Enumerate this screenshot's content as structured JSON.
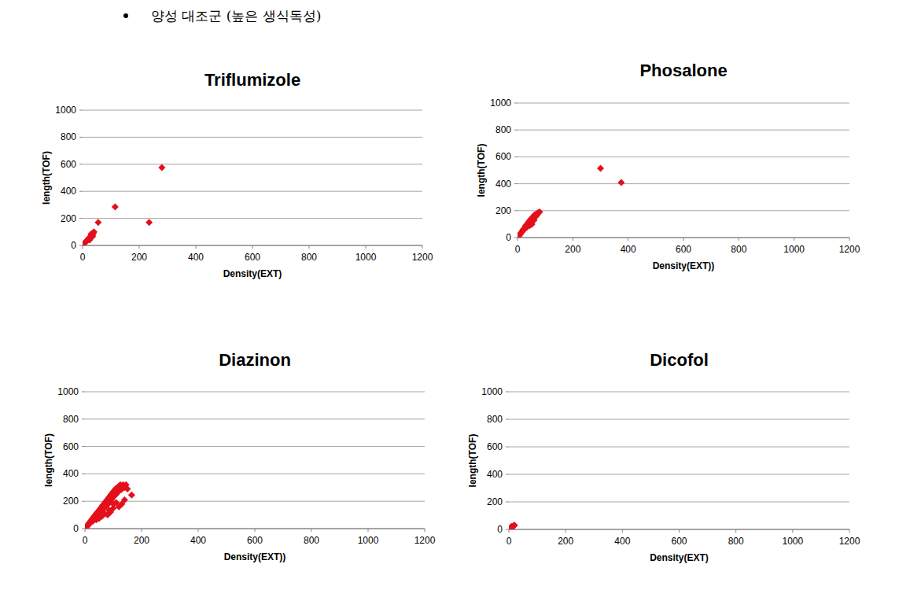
{
  "heading": "양성 대조군 (높은 생식독성)",
  "chart_data": [
    {
      "type": "scatter",
      "title": "Triflumizole",
      "x_label": "Density(EXT)",
      "y_label": "length(TOF)",
      "color": "#e3101c",
      "marker": "diamond",
      "grid": true,
      "xlim": [
        0,
        1200
      ],
      "ylim": [
        0,
        1000
      ],
      "xticks": [
        0,
        200,
        400,
        600,
        800,
        1000,
        1200
      ],
      "yticks": [
        0,
        200,
        400,
        600,
        800,
        1000
      ],
      "x": [
        2,
        5,
        8,
        10,
        12,
        15,
        18,
        20,
        22,
        25,
        28,
        30,
        32,
        35,
        38,
        40,
        30,
        25,
        35,
        55,
        115,
        235,
        280
      ],
      "values": [
        5,
        12,
        20,
        25,
        30,
        35,
        40,
        50,
        45,
        60,
        55,
        70,
        80,
        65,
        90,
        100,
        85,
        40,
        75,
        170,
        285,
        170,
        575
      ]
    },
    {
      "type": "scatter",
      "title": "Phosalone",
      "x_label": "Density(EXT))",
      "y_label": "length(TOF)",
      "color": "#e3101c",
      "marker": "diamond",
      "grid": true,
      "xlim": [
        0,
        1200
      ],
      "ylim": [
        0,
        1000
      ],
      "xticks": [
        0,
        200,
        400,
        600,
        800,
        1000,
        1200
      ],
      "yticks": [
        0,
        200,
        400,
        600,
        800,
        1000
      ],
      "x": [
        3,
        6,
        10,
        12,
        15,
        18,
        20,
        22,
        25,
        28,
        30,
        32,
        35,
        38,
        40,
        42,
        45,
        48,
        50,
        52,
        55,
        58,
        60,
        62,
        65,
        68,
        70,
        75,
        80,
        50,
        45,
        35,
        300,
        375
      ],
      "values": [
        8,
        15,
        25,
        35,
        40,
        50,
        60,
        55,
        70,
        80,
        90,
        75,
        100,
        110,
        95,
        120,
        130,
        115,
        140,
        100,
        150,
        160,
        130,
        170,
        155,
        175,
        165,
        185,
        190,
        110,
        90,
        80,
        515,
        410
      ]
    },
    {
      "type": "scatter",
      "title": "Diazinon",
      "x_label": "Density(EXT))",
      "y_label": "length(TOF)",
      "color": "#e3101c",
      "marker": "diamond",
      "grid": true,
      "xlim": [
        0,
        1200
      ],
      "ylim": [
        0,
        1000
      ],
      "xticks": [
        0,
        200,
        400,
        600,
        800,
        1000,
        1200
      ],
      "yticks": [
        0,
        200,
        400,
        600,
        800,
        1000
      ],
      "x": [
        2,
        5,
        8,
        10,
        12,
        15,
        18,
        20,
        22,
        25,
        28,
        30,
        32,
        35,
        38,
        40,
        42,
        45,
        48,
        50,
        52,
        55,
        58,
        60,
        62,
        65,
        68,
        70,
        72,
        75,
        78,
        80,
        82,
        85,
        88,
        90,
        92,
        95,
        98,
        100,
        102,
        105,
        108,
        110,
        115,
        118,
        120,
        125,
        128,
        135,
        140,
        145,
        150,
        165,
        140,
        130,
        110,
        100,
        90,
        80,
        70,
        60,
        50,
        40,
        120,
        100,
        85
      ],
      "values": [
        5,
        10,
        20,
        30,
        25,
        40,
        50,
        45,
        60,
        70,
        55,
        80,
        90,
        75,
        100,
        110,
        95,
        120,
        130,
        105,
        140,
        150,
        125,
        160,
        170,
        145,
        180,
        190,
        160,
        200,
        210,
        175,
        220,
        230,
        200,
        240,
        250,
        215,
        260,
        270,
        235,
        280,
        290,
        250,
        300,
        270,
        310,
        320,
        285,
        320,
        300,
        320,
        290,
        245,
        210,
        180,
        190,
        150,
        120,
        100,
        110,
        90,
        75,
        65,
        160,
        180,
        135
      ]
    },
    {
      "type": "scatter",
      "title": "Dicofol",
      "x_label": "Density(EXT)",
      "y_label": "length(TOF)",
      "color": "#e3101c",
      "marker": "diamond",
      "grid": true,
      "xlim": [
        0,
        1200
      ],
      "ylim": [
        0,
        1000
      ],
      "xticks": [
        0,
        200,
        400,
        600,
        800,
        1000,
        1200
      ],
      "yticks": [
        0,
        200,
        400,
        600,
        800,
        1000
      ],
      "x": [
        2,
        5,
        8,
        10,
        12,
        15,
        18,
        20,
        14
      ],
      "values": [
        5,
        10,
        18,
        22,
        15,
        25,
        28,
        30,
        20
      ]
    }
  ]
}
